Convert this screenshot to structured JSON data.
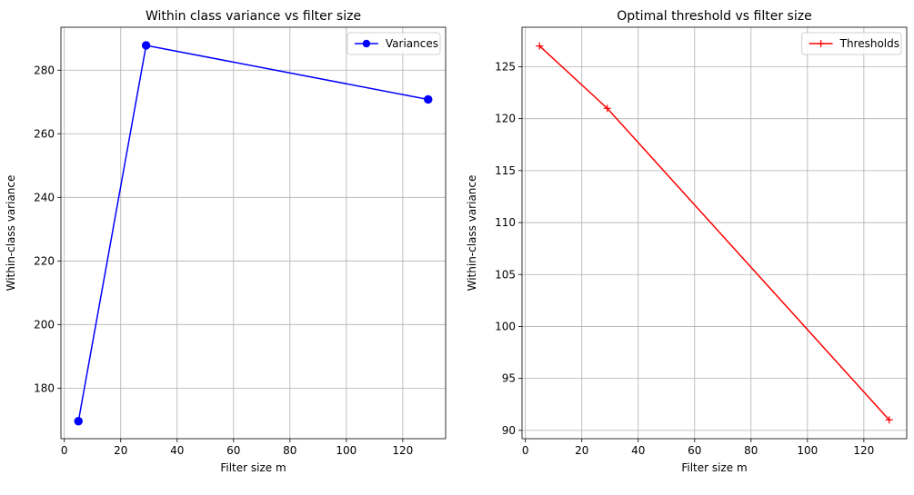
{
  "chart_data": [
    {
      "type": "line",
      "title": "Within class variance vs filter size",
      "xlabel": "Filter size m",
      "ylabel": "Within-class variance",
      "xlim": [
        -1.2,
        135.2
      ],
      "ylim": [
        164.1,
        293.5
      ],
      "xticks": [
        0,
        20,
        40,
        60,
        80,
        100,
        120
      ],
      "yticks": [
        180,
        200,
        220,
        240,
        260,
        280
      ],
      "grid": true,
      "legend_position": "top-right",
      "series": [
        {
          "name": "Variances",
          "color": "#0000ff",
          "marker": "circle",
          "x": [
            5,
            29,
            129
          ],
          "y": [
            169.6,
            287.8,
            270.8
          ]
        }
      ]
    },
    {
      "type": "line",
      "title": "Optimal threshold vs filter size",
      "xlabel": "Filter size m",
      "ylabel": "Within-class variance",
      "xlim": [
        -1.2,
        135.2
      ],
      "ylim": [
        89.2,
        128.8
      ],
      "xticks": [
        0,
        20,
        40,
        60,
        80,
        100,
        120
      ],
      "yticks": [
        90,
        95,
        100,
        105,
        110,
        115,
        120,
        125
      ],
      "grid": true,
      "legend_position": "top-right",
      "series": [
        {
          "name": "Thresholds",
          "color": "#ff0000",
          "marker": "plus",
          "x": [
            5,
            29,
            129
          ],
          "y": [
            127,
            121,
            91
          ]
        }
      ]
    }
  ]
}
